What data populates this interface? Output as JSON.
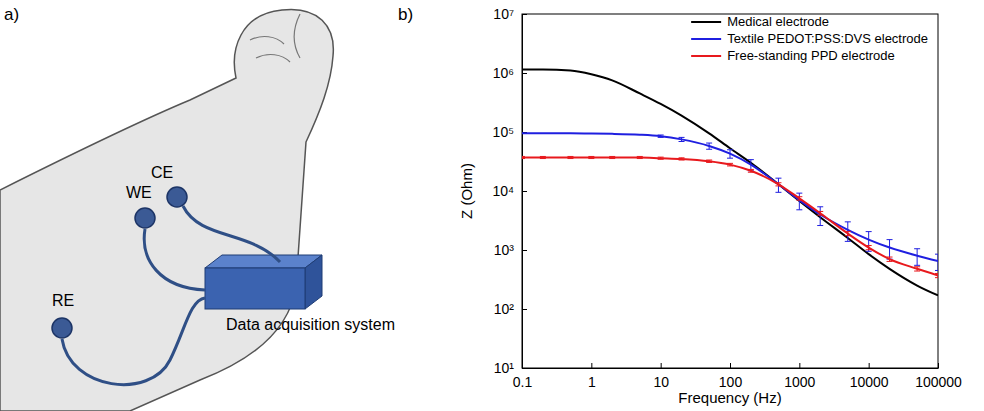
{
  "diagram": {
    "label": "a)",
    "electrodes": [
      {
        "label": "CE"
      },
      {
        "label": "WE"
      },
      {
        "label": "RE"
      }
    ],
    "device": "Data acquisition system"
  },
  "chart_data": {
    "type": "line",
    "title": "b)",
    "x_label": "Frequency (Hz)",
    "y_label": "Z (Ohm)",
    "log": true,
    "grid": false,
    "legend": "upper right",
    "xlim": [
      0.1,
      100000
    ],
    "ylim": [
      10,
      10000000
    ],
    "xticks": [
      0.1,
      1,
      10,
      100,
      1000,
      10000,
      100000
    ],
    "yticks": [
      {
        "value": 10,
        "label": "10¹"
      },
      {
        "value": 100,
        "label": "10²"
      },
      {
        "value": 1000,
        "label": "10³"
      },
      {
        "value": 10000,
        "label": "10⁴"
      },
      {
        "value": 100000,
        "label": "10⁵"
      },
      {
        "value": 1000000,
        "label": "10⁶"
      },
      {
        "value": 10000000,
        "label": "10⁷"
      }
    ],
    "x": [
      0.1,
      0.2,
      0.5,
      1,
      2,
      5,
      10,
      20,
      50,
      100,
      200,
      500,
      1000,
      2000,
      5000,
      10000,
      20000,
      50000,
      100000
    ],
    "series": [
      {
        "name": "Medical electrode",
        "color": "#000000",
        "values": [
          1150000,
          1150000,
          1100000,
          950000,
          750000,
          450000,
          300000,
          190000,
          95000,
          53000,
          30000,
          13000,
          6800,
          3600,
          1600,
          850,
          480,
          250,
          170
        ]
      },
      {
        "name": "Textile PEDOT:PSS:DVS electrode",
        "color": "#1f1fe0",
        "values": [
          95000,
          95000,
          95000,
          94000,
          93000,
          90000,
          85000,
          75000,
          58000,
          43000,
          28000,
          13000,
          7000,
          4000,
          2200,
          1500,
          1100,
          800,
          650
        ],
        "errors": [
          null,
          null,
          null,
          null,
          null,
          null,
          4000,
          6000,
          7000,
          7000,
          6000,
          3500,
          2200,
          1400,
          800,
          550,
          400,
          250,
          200
        ]
      },
      {
        "name": "Free-standing PPD electrode",
        "color": "#e8191d",
        "values": [
          37000,
          37000,
          37000,
          37000,
          37000,
          37000,
          36000,
          35000,
          32000,
          28000,
          22000,
          13000,
          7500,
          4200,
          1900,
          1100,
          700,
          480,
          370
        ],
        "errors": [
          1500,
          1500,
          1500,
          1500,
          1500,
          1500,
          1500,
          1500,
          1500,
          1400,
          1200,
          800,
          500,
          300,
          150,
          90,
          60,
          40,
          30
        ]
      }
    ]
  }
}
